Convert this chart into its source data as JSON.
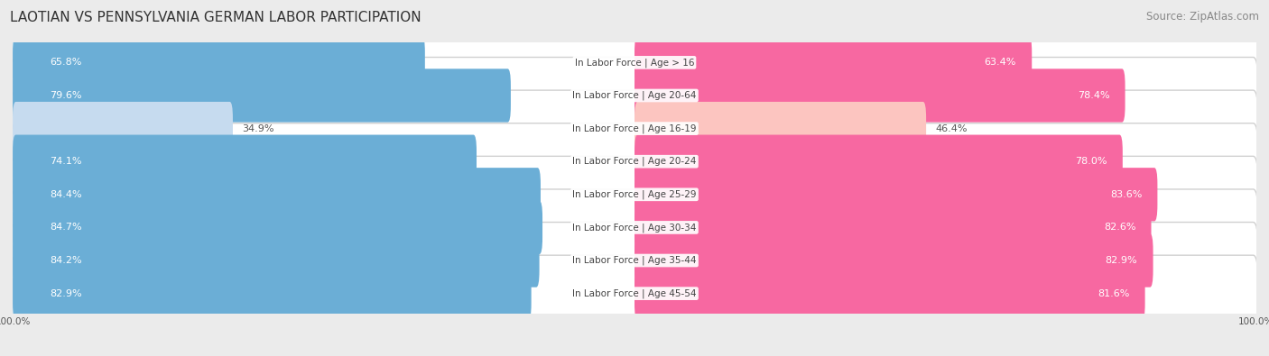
{
  "title": "LAOTIAN VS PENNSYLVANIA GERMAN LABOR PARTICIPATION",
  "source": "Source: ZipAtlas.com",
  "categories": [
    "In Labor Force | Age > 16",
    "In Labor Force | Age 20-64",
    "In Labor Force | Age 16-19",
    "In Labor Force | Age 20-24",
    "In Labor Force | Age 25-29",
    "In Labor Force | Age 30-34",
    "In Labor Force | Age 35-44",
    "In Labor Force | Age 45-54"
  ],
  "laotian_values": [
    65.8,
    79.6,
    34.9,
    74.1,
    84.4,
    84.7,
    84.2,
    82.9
  ],
  "penn_german_values": [
    63.4,
    78.4,
    46.4,
    78.0,
    83.6,
    82.6,
    82.9,
    81.6
  ],
  "laotian_color": "#6baed6",
  "laotian_color_light": "#c6dbef",
  "penn_german_color": "#f768a1",
  "penn_german_color_light": "#fcc5c0",
  "background_color": "#ebebeb",
  "row_bg_color": "#f5f5f5",
  "row_border_color": "#d0d0d0",
  "title_fontsize": 11,
  "source_fontsize": 8.5,
  "label_fontsize": 8,
  "category_fontsize": 7.5,
  "axis_label_fontsize": 7.5,
  "max_value": 100.0
}
